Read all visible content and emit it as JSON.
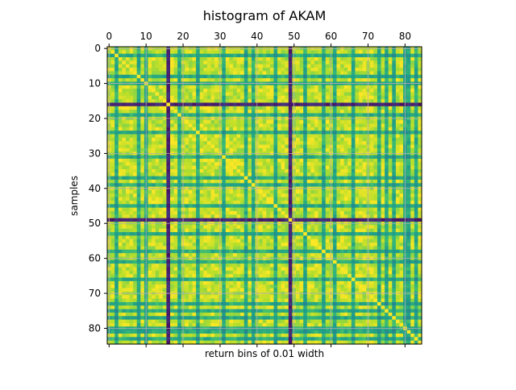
{
  "chart_data": {
    "type": "heatmap",
    "title": "histogram of AKAM",
    "xlabel": "return bins of 0.01 width",
    "ylabel": "samples",
    "x_ticks": [
      0,
      10,
      20,
      30,
      40,
      50,
      60,
      70,
      80
    ],
    "y_ticks": [
      0,
      10,
      20,
      30,
      40,
      50,
      60,
      70,
      80
    ],
    "x_tick_labels_position": "top",
    "x_range": [
      -0.5,
      84.5
    ],
    "y_range": [
      -0.5,
      84.5
    ],
    "y_inverted": true,
    "size": 85,
    "grid": true,
    "colormap": "viridis",
    "diagonal_value": 1.0,
    "dark_indices": [
      16,
      49
    ],
    "dark_value": 0.05,
    "medium_indices": [
      2,
      8,
      10,
      19,
      24,
      31,
      37,
      39,
      45,
      53,
      58,
      61,
      66,
      73,
      75,
      77,
      80,
      81,
      83
    ],
    "medium_value": 0.55,
    "colors": {
      "viridis": [
        "#440154",
        "#482878",
        "#3e4989",
        "#31688e",
        "#26828e",
        "#1f9e89",
        "#35b779",
        "#6ece58",
        "#b5de2b",
        "#fde725"
      ],
      "grid": "#b0b0b0",
      "axis": "#000000"
    }
  }
}
